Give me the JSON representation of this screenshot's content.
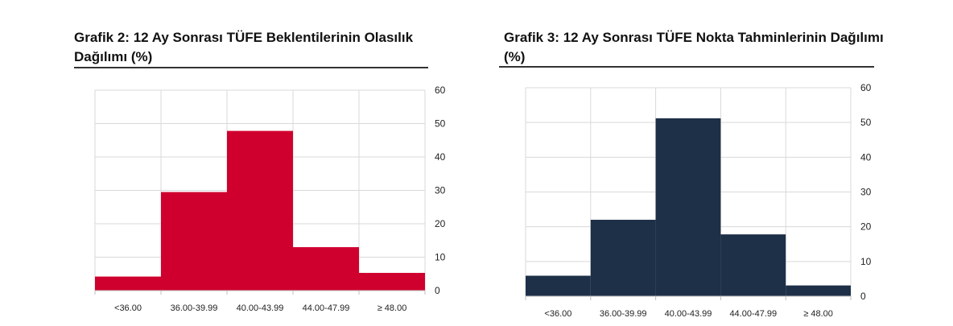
{
  "chart_data": [
    {
      "type": "bar",
      "title": "Grafik 2: 12 Ay Sonrası TÜFE Beklentilerinin Olasılık Dağılımı (%)",
      "categories": [
        "<36.00",
        "36.00-39.99",
        "40.00-43.99",
        "44.00-47.99",
        "≥ 48.00"
      ],
      "values": [
        4.2,
        29.5,
        47.8,
        13.0,
        5.3
      ],
      "ylim": [
        0,
        60
      ],
      "yticks": [
        0,
        10,
        20,
        30,
        40,
        50,
        60
      ],
      "grid": true,
      "y_axis_side": "right",
      "color": "#d0002e"
    },
    {
      "type": "bar",
      "title": "Grafik 3: 12 Ay Sonrası TÜFE Nokta Tahminlerinin Dağılımı (%)",
      "categories": [
        "<36.00",
        "36.00-39.99",
        "40.00-43.99",
        "44.00-47.99",
        "≥ 48.00"
      ],
      "values": [
        5.9,
        22.0,
        51.2,
        17.8,
        3.1
      ],
      "ylim": [
        0,
        60
      ],
      "yticks": [
        0,
        10,
        20,
        30,
        40,
        50,
        60
      ],
      "grid": true,
      "y_axis_side": "right",
      "color": "#1e3048"
    }
  ]
}
